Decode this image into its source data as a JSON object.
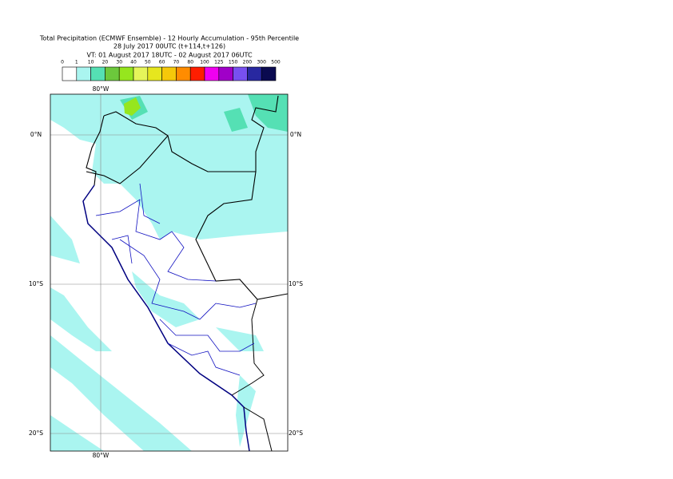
{
  "header": {
    "title": "Total Precipitation (ECMWF Ensemble) - 12 Hourly Accumulation - 95th Percentile",
    "base_time": "28 July 2017 00UTC (t+114,t+126)",
    "valid_time": "VT: 01 August 2017 18UTC - 02 August 2017 06UTC"
  },
  "legend": {
    "labels": [
      0,
      1,
      10,
      20,
      30,
      40,
      50,
      60,
      70,
      80,
      100,
      125,
      150,
      200,
      300,
      500
    ],
    "colors": [
      "#ffffff",
      "#aaf5f0",
      "#55e0b4",
      "#6cc83c",
      "#96e61e",
      "#e6f55a",
      "#e6e61e",
      "#f5c80a",
      "#ff8c00",
      "#ff1e00",
      "#f000f0",
      "#a000c8",
      "#7850f0",
      "#2828a0",
      "#0a0a50"
    ]
  },
  "axes": {
    "lat_labels": [
      "0°N",
      "10°S",
      "20°S"
    ],
    "lon_labels": [
      "80°W"
    ]
  }
}
